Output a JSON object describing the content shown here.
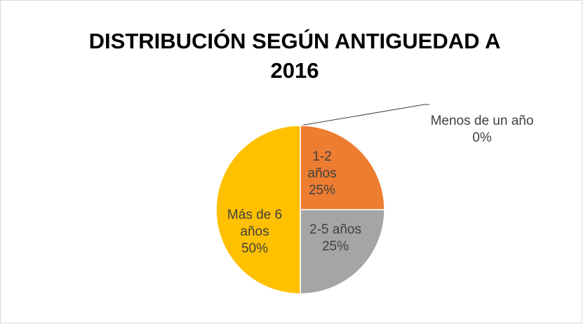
{
  "chart_data": {
    "type": "pie",
    "title": "DISTRIBUCIÓN SEGÚN ANTIGUEDAD A 2016",
    "categories": [
      "Menos de un año",
      "1-2 años",
      "2-5 años",
      "Más de 6 años"
    ],
    "values": [
      0,
      25,
      25,
      50
    ],
    "value_labels": [
      "0%",
      "25%",
      "25%",
      "50%"
    ],
    "colors": [
      "#4472c4",
      "#ed7d31",
      "#a5a5a5",
      "#ffc000"
    ]
  }
}
